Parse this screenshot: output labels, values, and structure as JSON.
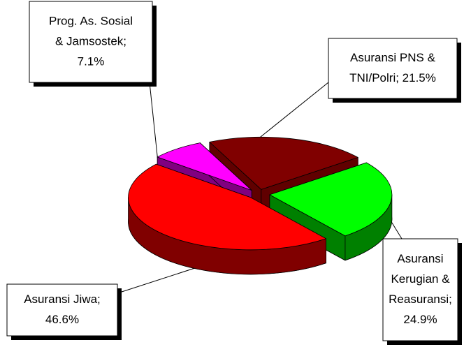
{
  "chart_data": {
    "type": "pie",
    "labels": [
      [
        "Asuransi PNS &",
        "TNI/Polri; 21.5%"
      ],
      [
        "Asuransi",
        "Kerugian &",
        "Reasuransi;",
        "24.9%"
      ],
      [
        "Asuransi Jiwa;",
        "46.6%"
      ],
      [
        "Prog. As. Sosial",
        "& Jamsostek;",
        "7.1%"
      ]
    ],
    "values": [
      21.5,
      24.9,
      46.6,
      7.1
    ],
    "colors": [
      "#800000",
      "#00ff00",
      "#ff0000",
      "#ff00ff"
    ],
    "side_colors": [
      "#600000",
      "#008000",
      "#800000",
      "#800080"
    ],
    "three_d": true
  }
}
